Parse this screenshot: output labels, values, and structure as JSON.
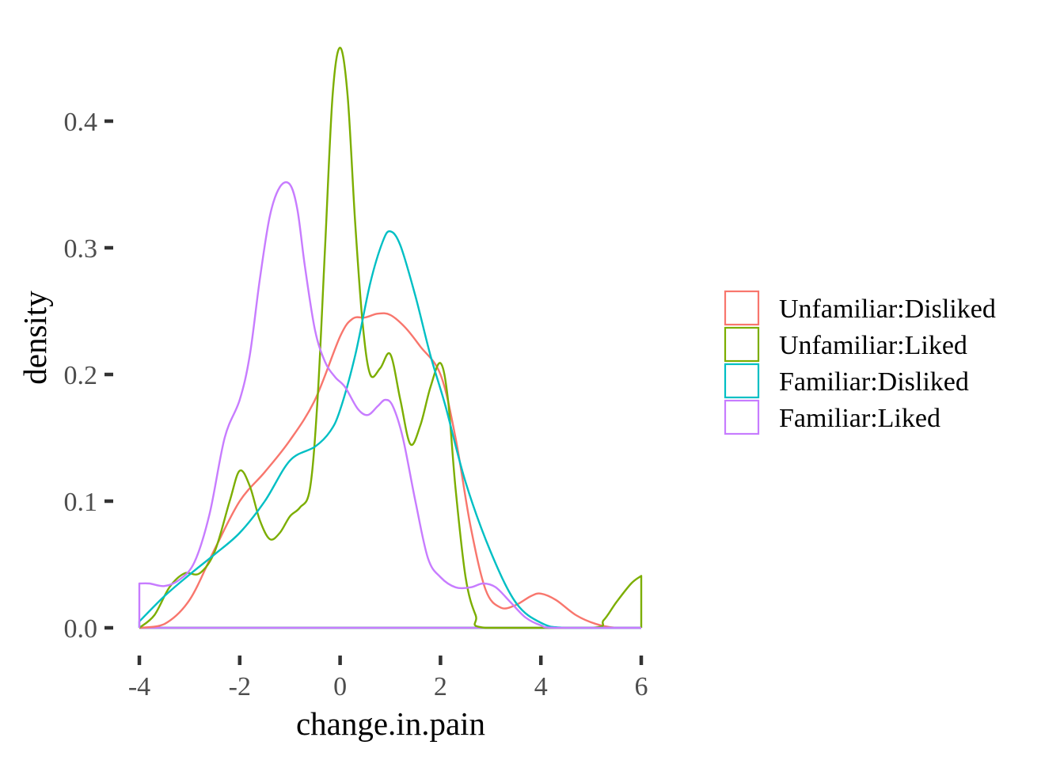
{
  "chart_data": {
    "type": "line",
    "xlabel": "change.in.pain",
    "ylabel": "density",
    "xlim": [
      -4,
      6
    ],
    "ylim": [
      0,
      0.46
    ],
    "x_ticks": [
      -4,
      -2,
      0,
      2,
      4,
      6
    ],
    "x_tick_labels": [
      "-4",
      "-2",
      "0",
      "2",
      "4",
      "6"
    ],
    "y_ticks": [
      0.0,
      0.1,
      0.2,
      0.3,
      0.4
    ],
    "y_tick_labels": [
      "0.0",
      "0.1",
      "0.2",
      "0.3",
      "0.4"
    ],
    "grid": false,
    "legend": {
      "position": "right"
    },
    "series": [
      {
        "name": "Unfamiliar:Disliked",
        "color": "#F8766D",
        "points": [
          [
            -4.0,
            0.0
          ],
          [
            -3.5,
            0.003
          ],
          [
            -3.0,
            0.022
          ],
          [
            -2.5,
            0.062
          ],
          [
            -2.0,
            0.1
          ],
          [
            -1.5,
            0.123
          ],
          [
            -1.0,
            0.148
          ],
          [
            -0.5,
            0.18
          ],
          [
            0.0,
            0.23
          ],
          [
            0.25,
            0.244
          ],
          [
            0.5,
            0.245
          ],
          [
            0.75,
            0.248
          ],
          [
            1.0,
            0.247
          ],
          [
            1.3,
            0.237
          ],
          [
            1.6,
            0.222
          ],
          [
            2.0,
            0.2
          ],
          [
            2.3,
            0.15
          ],
          [
            2.6,
            0.08
          ],
          [
            2.9,
            0.03
          ],
          [
            3.2,
            0.016
          ],
          [
            3.5,
            0.018
          ],
          [
            3.8,
            0.025
          ],
          [
            4.0,
            0.027
          ],
          [
            4.3,
            0.022
          ],
          [
            4.7,
            0.01
          ],
          [
            5.1,
            0.003
          ],
          [
            5.5,
            0.0
          ],
          [
            6.0,
            0.0
          ]
        ]
      },
      {
        "name": "Unfamiliar:Liked",
        "color": "#7CAE00",
        "points": [
          [
            -4.0,
            0.0
          ],
          [
            -3.7,
            0.01
          ],
          [
            -3.4,
            0.032
          ],
          [
            -3.1,
            0.043
          ],
          [
            -2.8,
            0.043
          ],
          [
            -2.5,
            0.06
          ],
          [
            -2.2,
            0.1
          ],
          [
            -2.0,
            0.124
          ],
          [
            -1.8,
            0.112
          ],
          [
            -1.6,
            0.085
          ],
          [
            -1.4,
            0.07
          ],
          [
            -1.2,
            0.075
          ],
          [
            -1.0,
            0.088
          ],
          [
            -0.8,
            0.095
          ],
          [
            -0.6,
            0.11
          ],
          [
            -0.45,
            0.18
          ],
          [
            -0.3,
            0.3
          ],
          [
            -0.15,
            0.42
          ],
          [
            0.0,
            0.458
          ],
          [
            0.15,
            0.42
          ],
          [
            0.3,
            0.32
          ],
          [
            0.45,
            0.24
          ],
          [
            0.6,
            0.2
          ],
          [
            0.8,
            0.205
          ],
          [
            1.0,
            0.216
          ],
          [
            1.2,
            0.18
          ],
          [
            1.4,
            0.145
          ],
          [
            1.6,
            0.16
          ],
          [
            1.8,
            0.19
          ],
          [
            2.0,
            0.209
          ],
          [
            2.15,
            0.18
          ],
          [
            2.3,
            0.11
          ],
          [
            2.5,
            0.04
          ],
          [
            2.7,
            0.01
          ],
          [
            2.9,
            0.0
          ],
          [
            5.0,
            0.0
          ],
          [
            5.25,
            0.006
          ],
          [
            5.5,
            0.02
          ],
          [
            5.8,
            0.035
          ],
          [
            6.0,
            0.041
          ]
        ]
      },
      {
        "name": "Familiar:Disliked",
        "color": "#00BFC4",
        "points": [
          [
            -4.0,
            0.005
          ],
          [
            -3.5,
            0.025
          ],
          [
            -3.0,
            0.042
          ],
          [
            -2.5,
            0.058
          ],
          [
            -2.0,
            0.075
          ],
          [
            -1.5,
            0.1
          ],
          [
            -1.0,
            0.132
          ],
          [
            -0.5,
            0.143
          ],
          [
            -0.2,
            0.155
          ],
          [
            0.0,
            0.172
          ],
          [
            0.3,
            0.215
          ],
          [
            0.6,
            0.272
          ],
          [
            0.85,
            0.305
          ],
          [
            1.0,
            0.313
          ],
          [
            1.2,
            0.302
          ],
          [
            1.5,
            0.262
          ],
          [
            1.8,
            0.215
          ],
          [
            2.1,
            0.175
          ],
          [
            2.5,
            0.115
          ],
          [
            3.0,
            0.06
          ],
          [
            3.5,
            0.02
          ],
          [
            4.0,
            0.004
          ],
          [
            4.5,
            0.0
          ],
          [
            6.0,
            0.0
          ]
        ]
      },
      {
        "name": "Familiar:Liked",
        "color": "#C77CFF",
        "points": [
          [
            -4.0,
            0.035
          ],
          [
            -3.8,
            0.035
          ],
          [
            -3.5,
            0.033
          ],
          [
            -3.2,
            0.038
          ],
          [
            -2.9,
            0.052
          ],
          [
            -2.6,
            0.09
          ],
          [
            -2.3,
            0.15
          ],
          [
            -2.0,
            0.18
          ],
          [
            -1.8,
            0.215
          ],
          [
            -1.6,
            0.275
          ],
          [
            -1.4,
            0.325
          ],
          [
            -1.2,
            0.348
          ],
          [
            -1.0,
            0.35
          ],
          [
            -0.85,
            0.33
          ],
          [
            -0.7,
            0.285
          ],
          [
            -0.5,
            0.235
          ],
          [
            -0.3,
            0.21
          ],
          [
            -0.1,
            0.198
          ],
          [
            0.1,
            0.19
          ],
          [
            0.35,
            0.173
          ],
          [
            0.55,
            0.168
          ],
          [
            0.75,
            0.175
          ],
          [
            0.9,
            0.18
          ],
          [
            1.05,
            0.175
          ],
          [
            1.25,
            0.15
          ],
          [
            1.5,
            0.1
          ],
          [
            1.75,
            0.055
          ],
          [
            2.0,
            0.04
          ],
          [
            2.3,
            0.032
          ],
          [
            2.6,
            0.032
          ],
          [
            2.85,
            0.035
          ],
          [
            3.1,
            0.032
          ],
          [
            3.4,
            0.02
          ],
          [
            3.7,
            0.008
          ],
          [
            4.0,
            0.002
          ],
          [
            4.3,
            0.0
          ],
          [
            6.0,
            0.0
          ]
        ]
      }
    ]
  }
}
